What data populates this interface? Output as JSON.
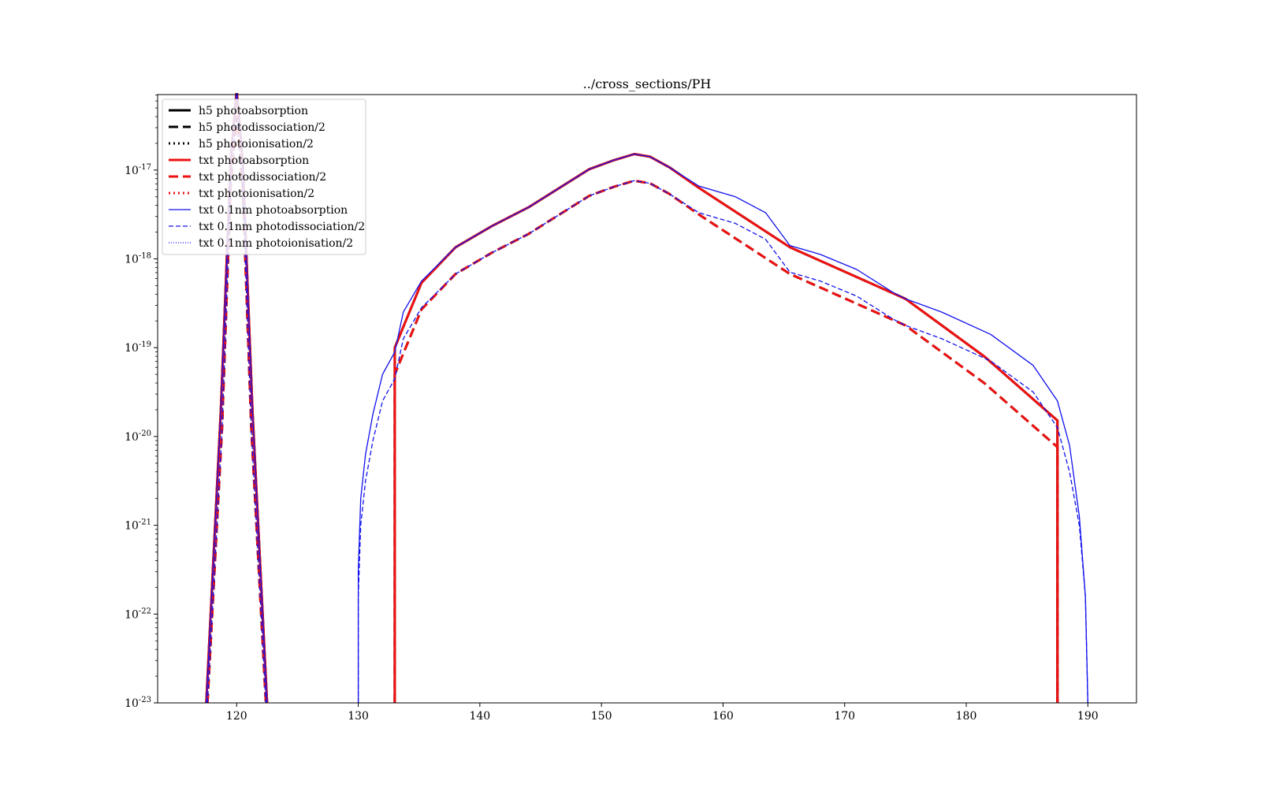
{
  "chart_data": {
    "type": "line",
    "title": "../cross_sections/PH",
    "xlabel": "",
    "ylabel": "",
    "xlim": [
      113.5,
      194
    ],
    "ylim_exponent": [
      -23,
      -16.15
    ],
    "yscale": "log",
    "x_ticks": [
      120,
      130,
      140,
      150,
      160,
      170,
      180,
      190
    ],
    "x_tick_labels": [
      "120",
      "130",
      "140",
      "150",
      "160",
      "170",
      "180",
      "190"
    ],
    "y_ticks_exponent": [
      -23,
      -22,
      -21,
      -20,
      -19,
      -18,
      -17
    ],
    "y_tick_base": "10",
    "y_tick_exponent_labels": [
      "-23",
      "-22",
      "-21",
      "-20",
      "-19",
      "-18",
      "-17"
    ],
    "grid": false,
    "legend_position": "upper-left",
    "colors": {
      "black": "#000000",
      "red": "#ee1111",
      "blue": "#1111ee"
    },
    "series": [
      {
        "name": "h5 photoabsorption",
        "color": "#000000",
        "style": "solid",
        "weight": "thick",
        "segments": [
          [
            [
              117.5,
              -23
            ],
            [
              118.7,
              -19.7
            ],
            [
              119.5,
              -16.9
            ],
            [
              120.0,
              -16.1
            ],
            [
              120.5,
              -16.9
            ],
            [
              121.3,
              -19.7
            ],
            [
              122.5,
              -23
            ]
          ],
          [
            [
              133,
              -23
            ],
            [
              133,
              -19.0
            ],
            [
              135.2,
              -18.27
            ],
            [
              138,
              -17.87
            ],
            [
              141,
              -17.63
            ],
            [
              144,
              -17.42
            ],
            [
              149,
              -16.99
            ],
            [
              151,
              -16.89
            ],
            [
              152.7,
              -16.82
            ],
            [
              154,
              -16.85
            ],
            [
              155.6,
              -16.97
            ],
            [
              158,
              -17.2
            ],
            [
              165.5,
              -17.87
            ],
            [
              175,
              -18.45
            ],
            [
              181.5,
              -19.1
            ],
            [
              187.5,
              -19.82
            ],
            [
              187.5,
              -23
            ]
          ]
        ]
      },
      {
        "name": "h5 photodissociation/2",
        "color": "#000000",
        "style": "dashed",
        "weight": "thick",
        "segments": [
          [
            [
              117.6,
              -23
            ],
            [
              118.8,
              -19.9
            ],
            [
              119.5,
              -17.2
            ],
            [
              120.0,
              -16.4
            ],
            [
              120.5,
              -17.2
            ],
            [
              121.2,
              -19.9
            ],
            [
              122.4,
              -23
            ]
          ],
          [
            [
              133,
              -23
            ],
            [
              133,
              -19.3
            ],
            [
              135.2,
              -18.57
            ],
            [
              138,
              -18.17
            ],
            [
              141,
              -17.93
            ],
            [
              144,
              -17.72
            ],
            [
              149,
              -17.29
            ],
            [
              151,
              -17.19
            ],
            [
              152.7,
              -17.12
            ],
            [
              154,
              -17.15
            ],
            [
              155.6,
              -17.27
            ],
            [
              158,
              -17.5
            ],
            [
              165.5,
              -18.17
            ],
            [
              175,
              -18.75
            ],
            [
              181.5,
              -19.4
            ],
            [
              187.5,
              -20.12
            ],
            [
              187.5,
              -23
            ]
          ]
        ]
      },
      {
        "name": "h5 photoionisation/2",
        "color": "#000000",
        "style": "dotted",
        "weight": "thick",
        "segments": []
      },
      {
        "name": "txt photoabsorption",
        "color": "#ee1111",
        "style": "solid",
        "weight": "thick",
        "segments": [
          [
            [
              117.5,
              -23
            ],
            [
              118.7,
              -19.7
            ],
            [
              119.5,
              -16.9
            ],
            [
              120.0,
              -16.1
            ],
            [
              120.5,
              -16.9
            ],
            [
              121.3,
              -19.7
            ],
            [
              122.5,
              -23
            ]
          ],
          [
            [
              133,
              -23
            ],
            [
              133,
              -19.0
            ],
            [
              135.2,
              -18.27
            ],
            [
              138,
              -17.87
            ],
            [
              141,
              -17.63
            ],
            [
              144,
              -17.42
            ],
            [
              149,
              -16.99
            ],
            [
              151,
              -16.89
            ],
            [
              152.7,
              -16.82
            ],
            [
              154,
              -16.85
            ],
            [
              155.6,
              -16.97
            ],
            [
              158,
              -17.2
            ],
            [
              165.5,
              -17.87
            ],
            [
              175,
              -18.45
            ],
            [
              181.5,
              -19.1
            ],
            [
              187.5,
              -19.82
            ],
            [
              187.5,
              -23
            ]
          ]
        ]
      },
      {
        "name": "txt photodissociation/2",
        "color": "#ee1111",
        "style": "dashed",
        "weight": "thick",
        "segments": [
          [
            [
              117.6,
              -23
            ],
            [
              118.8,
              -19.9
            ],
            [
              119.5,
              -17.2
            ],
            [
              120.0,
              -16.4
            ],
            [
              120.5,
              -17.2
            ],
            [
              121.2,
              -19.9
            ],
            [
              122.4,
              -23
            ]
          ],
          [
            [
              133,
              -23
            ],
            [
              133,
              -19.3
            ],
            [
              135.2,
              -18.57
            ],
            [
              138,
              -18.17
            ],
            [
              141,
              -17.93
            ],
            [
              144,
              -17.72
            ],
            [
              149,
              -17.29
            ],
            [
              151,
              -17.19
            ],
            [
              152.7,
              -17.12
            ],
            [
              154,
              -17.15
            ],
            [
              155.6,
              -17.27
            ],
            [
              158,
              -17.5
            ],
            [
              165.5,
              -18.17
            ],
            [
              175,
              -18.75
            ],
            [
              181.5,
              -19.4
            ],
            [
              187.5,
              -20.12
            ],
            [
              187.5,
              -23
            ]
          ]
        ]
      },
      {
        "name": "txt photoionisation/2",
        "color": "#ee1111",
        "style": "dotted",
        "weight": "thick",
        "segments": []
      },
      {
        "name": "txt 0.1nm photoabsorption",
        "color": "#1111ee",
        "style": "solid",
        "weight": "thin",
        "segments": [
          [
            [
              117.5,
              -23
            ],
            [
              118.7,
              -19.7
            ],
            [
              119.5,
              -16.9
            ],
            [
              120.0,
              -16.1
            ],
            [
              120.5,
              -16.9
            ],
            [
              121.3,
              -19.7
            ],
            [
              122.5,
              -23
            ]
          ],
          [
            [
              130,
              -23
            ],
            [
              130,
              -21.5
            ],
            [
              130.2,
              -20.7
            ],
            [
              130.6,
              -20.2
            ],
            [
              131.2,
              -19.75
            ],
            [
              132,
              -19.3
            ],
            [
              133,
              -19.05
            ],
            [
              133.7,
              -18.6
            ],
            [
              135.2,
              -18.25
            ],
            [
              138,
              -17.87
            ],
            [
              141,
              -17.63
            ],
            [
              144,
              -17.42
            ],
            [
              149,
              -16.99
            ],
            [
              151,
              -16.89
            ],
            [
              152.7,
              -16.82
            ],
            [
              154,
              -16.85
            ],
            [
              155.6,
              -16.97
            ],
            [
              158,
              -17.18
            ],
            [
              161,
              -17.3
            ],
            [
              163.5,
              -17.48
            ],
            [
              165.5,
              -17.85
            ],
            [
              168,
              -17.95
            ],
            [
              171,
              -18.12
            ],
            [
              174,
              -18.38
            ],
            [
              175,
              -18.45
            ],
            [
              178,
              -18.6
            ],
            [
              182,
              -18.85
            ],
            [
              185.5,
              -19.2
            ],
            [
              187.5,
              -19.6
            ],
            [
              188.5,
              -20.1
            ],
            [
              189.3,
              -20.9
            ],
            [
              189.8,
              -21.8
            ],
            [
              190,
              -23
            ]
          ]
        ]
      },
      {
        "name": "txt 0.1nm photodissociation/2",
        "color": "#1111ee",
        "style": "dashed",
        "weight": "thin",
        "segments": [
          [
            [
              117.6,
              -23
            ],
            [
              118.8,
              -19.9
            ],
            [
              119.5,
              -17.2
            ],
            [
              120.0,
              -16.4
            ],
            [
              120.5,
              -17.2
            ],
            [
              121.2,
              -19.9
            ],
            [
              122.4,
              -23
            ]
          ],
          [
            [
              130,
              -23
            ],
            [
              130,
              -21.8
            ],
            [
              130.2,
              -21.0
            ],
            [
              130.6,
              -20.5
            ],
            [
              131.2,
              -20.05
            ],
            [
              132,
              -19.6
            ],
            [
              133,
              -19.35
            ],
            [
              133.7,
              -18.9
            ],
            [
              135.2,
              -18.55
            ],
            [
              138,
              -18.17
            ],
            [
              141,
              -17.93
            ],
            [
              144,
              -17.72
            ],
            [
              149,
              -17.29
            ],
            [
              151,
              -17.19
            ],
            [
              152.7,
              -17.12
            ],
            [
              154,
              -17.15
            ],
            [
              155.6,
              -17.27
            ],
            [
              158,
              -17.48
            ],
            [
              161,
              -17.6
            ],
            [
              163.5,
              -17.78
            ],
            [
              165.5,
              -18.15
            ],
            [
              168,
              -18.25
            ],
            [
              171,
              -18.42
            ],
            [
              174,
              -18.68
            ],
            [
              175,
              -18.75
            ],
            [
              178,
              -18.9
            ],
            [
              182,
              -19.15
            ],
            [
              185.5,
              -19.5
            ],
            [
              187.5,
              -19.9
            ],
            [
              188.5,
              -20.4
            ],
            [
              189.3,
              -21.0
            ],
            [
              189.8,
              -21.8
            ],
            [
              190,
              -23
            ]
          ]
        ]
      },
      {
        "name": "txt 0.1nm photoionisation/2",
        "color": "#1111ee",
        "style": "dotted",
        "weight": "thin",
        "segments": []
      }
    ]
  }
}
